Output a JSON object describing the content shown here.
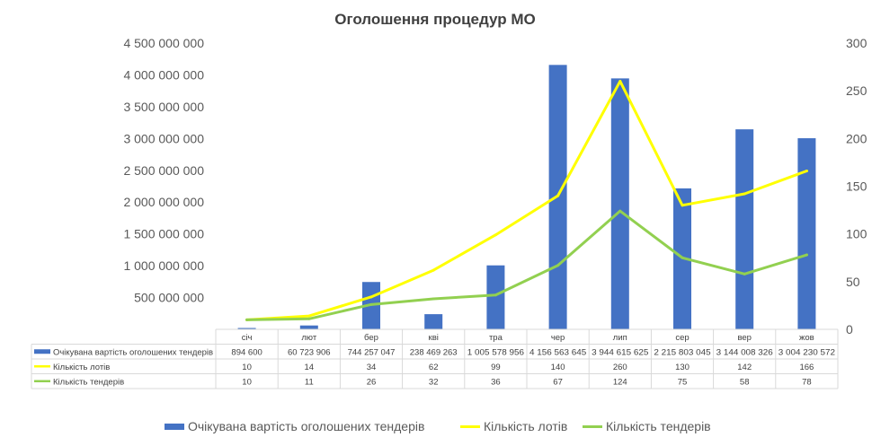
{
  "chart_data": {
    "type": "bar",
    "title": "Оголошення процедур МО",
    "categories": [
      "січ",
      "лют",
      "бер",
      "кві",
      "тра",
      "чер",
      "лип",
      "сер",
      "вер",
      "жов"
    ],
    "series": [
      {
        "name": "Очікувана вартість оголошених тендерів",
        "type": "bar",
        "axis": "left",
        "color": "#4472C4",
        "values": [
          894600,
          60723906,
          744257047,
          238469263,
          1005578956,
          4156563645,
          3944615625,
          2215803045,
          3144008326,
          3004230572
        ],
        "labels": [
          "894 600",
          "60 723 906",
          "744 257 047",
          "238 469 263",
          "1 005 578 956",
          "4 156 563 645",
          "3 944 615 625",
          "2 215 803 045",
          "3 144 008 326",
          "3 004 230 572"
        ]
      },
      {
        "name": "Кількість лотів",
        "type": "line",
        "axis": "right",
        "color": "#FFFF00",
        "values": [
          10,
          14,
          34,
          62,
          99,
          140,
          260,
          130,
          142,
          166
        ],
        "labels": [
          "10",
          "14",
          "34",
          "62",
          "99",
          "140",
          "260",
          "130",
          "142",
          "166"
        ]
      },
      {
        "name": "Кількість тендерів",
        "type": "line",
        "axis": "right",
        "color": "#92D050",
        "values": [
          10,
          11,
          26,
          32,
          36,
          67,
          124,
          75,
          58,
          78
        ],
        "labels": [
          "10",
          "11",
          "26",
          "32",
          "36",
          "67",
          "124",
          "75",
          "58",
          "78"
        ]
      }
    ],
    "y_left": {
      "range": [
        0,
        4500000000
      ],
      "ticks": [
        {
          "value": 500000000,
          "label": "500 000 000"
        },
        {
          "value": 1000000000,
          "label": "1 000 000 000"
        },
        {
          "value": 1500000000,
          "label": "1 500 000 000"
        },
        {
          "value": 2000000000,
          "label": "2 000 000 000"
        },
        {
          "value": 2500000000,
          "label": "2 500 000 000"
        },
        {
          "value": 3000000000,
          "label": "3 000 000 000"
        },
        {
          "value": 3500000000,
          "label": "3 500 000 000"
        },
        {
          "value": 4000000000,
          "label": "4 000 000 000"
        },
        {
          "value": 4500000000,
          "label": "4 500 000 000"
        }
      ]
    },
    "y_right": {
      "range": [
        0,
        300
      ],
      "ticks": [
        {
          "value": 0,
          "label": "0"
        },
        {
          "value": 50,
          "label": "50"
        },
        {
          "value": 100,
          "label": "100"
        },
        {
          "value": 150,
          "label": "150"
        },
        {
          "value": 200,
          "label": "200"
        },
        {
          "value": 250,
          "label": "250"
        },
        {
          "value": 300,
          "label": "300"
        }
      ]
    },
    "grid": false,
    "data_table": true,
    "legend_position": "bottom"
  }
}
